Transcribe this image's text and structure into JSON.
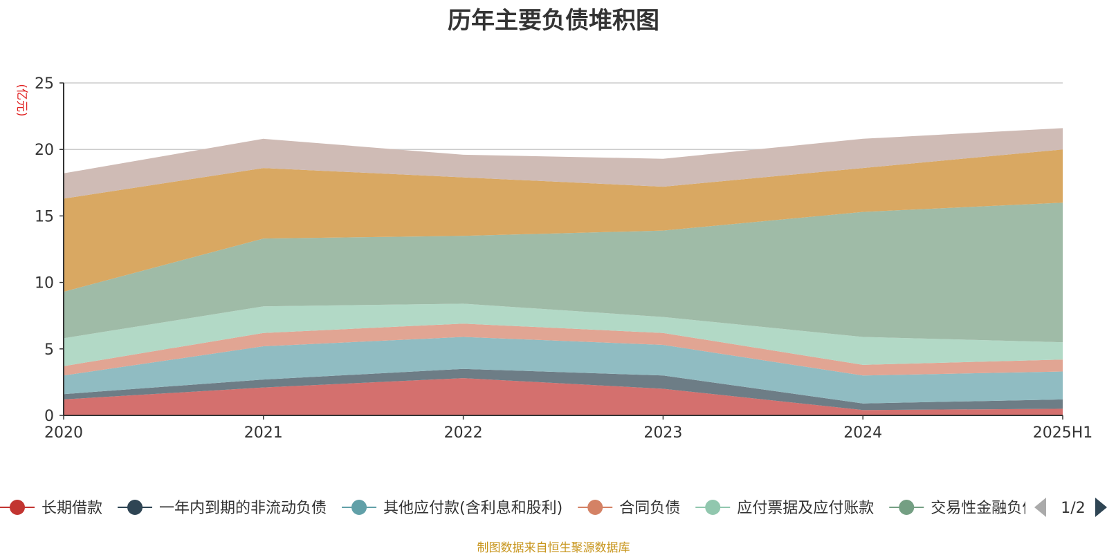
{
  "chart_data": {
    "type": "area",
    "stacked": true,
    "title": "历年主要负债堆积图",
    "ylabel": "(亿元)",
    "ylim": [
      0,
      25
    ],
    "yticks": [
      0,
      5,
      10,
      15,
      20,
      25
    ],
    "grid": true,
    "categories": [
      "2020",
      "2021",
      "2022",
      "2023",
      "2024",
      "2025H1"
    ],
    "series": [
      {
        "name": "长期借款",
        "color": "#c23531",
        "fill": "#d4706e",
        "values": [
          1.2,
          2.1,
          2.8,
          2.0,
          0.4,
          0.5
        ]
      },
      {
        "name": "一年内到期的非流动负债",
        "color": "#2f4554",
        "fill": "#6d7d86",
        "values": [
          0.4,
          0.6,
          0.7,
          1.0,
          0.5,
          0.7
        ]
      },
      {
        "name": "其他应付款(含利息和股利)",
        "color": "#61a0a8",
        "fill": "#90bcc2",
        "values": [
          1.4,
          2.5,
          2.4,
          2.3,
          2.1,
          2.1
        ]
      },
      {
        "name": "合同负债",
        "color": "#d48265",
        "fill": "#e1a593",
        "values": [
          0.7,
          1.0,
          1.0,
          0.9,
          0.8,
          0.9
        ]
      },
      {
        "name": "应付票据及应付账款",
        "color": "#91c7ae",
        "fill": "#b2d9c6",
        "values": [
          2.1,
          2.0,
          1.5,
          1.2,
          2.1,
          1.3
        ]
      },
      {
        "name": "交易性金融负债",
        "color": "#749f83",
        "fill": "#9fbba7",
        "values": [
          3.5,
          5.1,
          5.1,
          6.5,
          9.4,
          10.5
        ]
      },
      {
        "name": "",
        "color": "#ca8622",
        "fill": "#d9a862",
        "values": [
          7.0,
          5.3,
          4.4,
          3.3,
          3.3,
          4.0
        ]
      },
      {
        "name": "",
        "color": "#bda29a",
        "fill": "#cfbbb5",
        "values": [
          1.9,
          2.2,
          1.7,
          2.1,
          2.2,
          1.6
        ]
      }
    ],
    "legend": {
      "placement": "bottom",
      "visible_count": 6,
      "page": "1/2"
    }
  },
  "footer": "制图数据来自恒生聚源数据库"
}
